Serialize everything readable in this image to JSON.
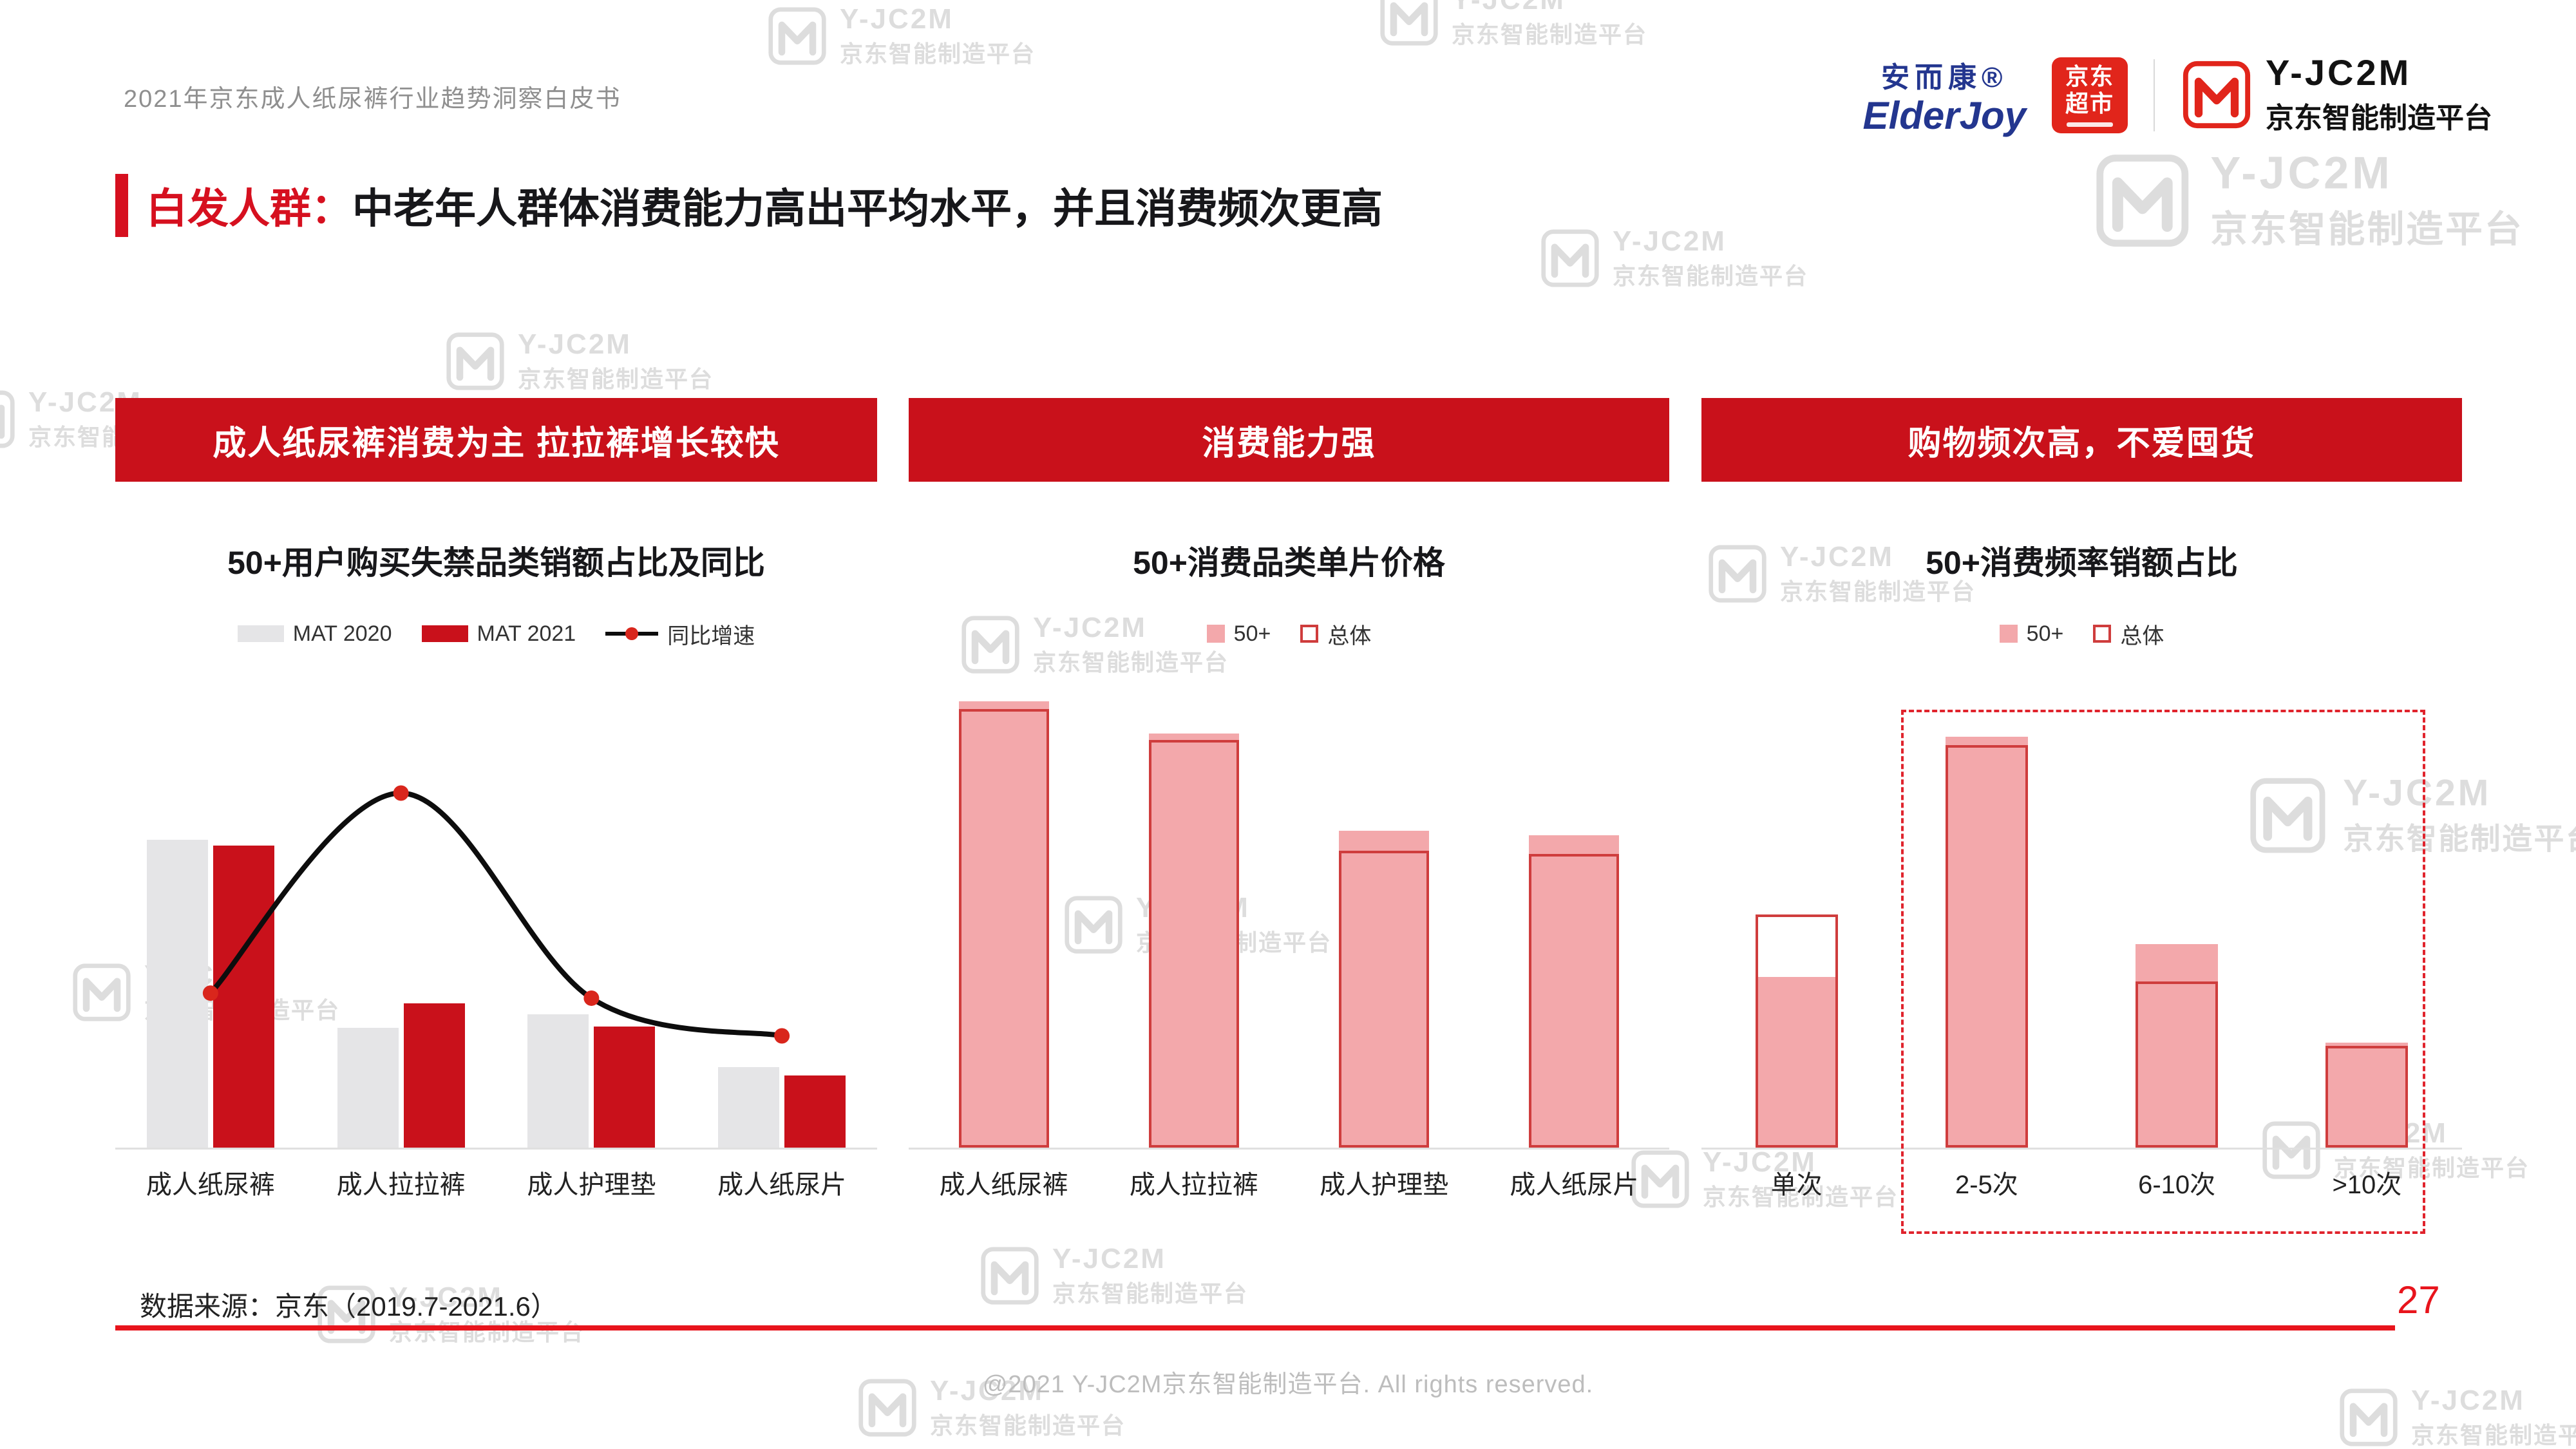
{
  "page": {
    "header_note": "2021年京东成人纸尿裤行业趋势洞察白皮书",
    "title_prefix": "白发人群：",
    "title_main": "中老年人群体消费能力高出平均水平，并且消费频次更高",
    "source": "数据来源：京东（2019.7-2021.6）",
    "page_number": "27",
    "footer": "@2021 Y-JC2M京东智能制造平台. All rights reserved.",
    "watermark": {
      "brand": "Y-JC2M",
      "subtitle": "京东智能制造平台"
    }
  },
  "logos": {
    "elderjoy_cn": "安而康®",
    "elderjoy_en": "ElderJoy",
    "jd_market_line1": "京东",
    "jd_market_line2": "超市",
    "yjc2m_name": "Y-JC2M",
    "yjc2m_subtitle": "京东智能制造平台"
  },
  "banners": [
    {
      "label": "成人纸尿裤消费为主 拉拉裤增长较快"
    },
    {
      "label": "消费能力强"
    },
    {
      "label": "购物频次高，不爱囤货"
    }
  ],
  "colors": {
    "banner_red": "#c9111b",
    "title_red": "#d6101f",
    "bright_red": "#e8141c",
    "bar_gray": "#e5e5e7",
    "bar_red": "#c9111b",
    "pink": "#f3a8ab",
    "outline_red": "#cf3d3d",
    "line_black": "#0d0d0d",
    "marker_red": "#d9261c",
    "dashed_red": "#e0242d"
  },
  "chart_data": [
    {
      "type": "bar",
      "title": "50+用户购买失禁品类销额占比及同比",
      "categories": [
        "成人纸尿裤",
        "成人拉拉裤",
        "成人护理垫",
        "成人纸尿片"
      ],
      "value_scale": "relative height 0-1 (no numeric axis labels shown in source)",
      "series": [
        {
          "name": "MAT 2020",
          "style": "filled",
          "color": "#e5e5e7",
          "values": [
            0.67,
            0.26,
            0.29,
            0.175
          ]
        },
        {
          "name": "MAT 2021",
          "style": "filled",
          "color": "#c9111b",
          "values": [
            0.657,
            0.314,
            0.264,
            0.157
          ]
        }
      ],
      "line": {
        "name": "同比增速",
        "color": "#0d0d0d",
        "marker_color": "#d9261c",
        "values": [
          0.336,
          0.771,
          0.325,
          0.243
        ]
      },
      "legend_position": "top",
      "grid": false
    },
    {
      "type": "bar",
      "title": "50+消费品类单片价格",
      "categories": [
        "成人纸尿裤",
        "成人拉拉裤",
        "成人护理垫",
        "成人纸尿片"
      ],
      "value_scale": "relative height 0-1 (no numeric axis labels shown in source)",
      "series": [
        {
          "name": "50+",
          "style": "filled",
          "color": "#f3a8ab",
          "values": [
            0.971,
            0.9,
            0.689,
            0.679
          ]
        },
        {
          "name": "总体",
          "style": "outline",
          "color": "#cf3d3d",
          "values": [
            0.954,
            0.886,
            0.646,
            0.639
          ]
        }
      ],
      "legend_position": "top",
      "grid": false
    },
    {
      "type": "bar",
      "title": "50+消费频率销额占比",
      "categories": [
        "单次",
        "2-5次",
        "6-10次",
        ">10次"
      ],
      "value_scale": "relative height 0-1 (no numeric axis labels shown in source)",
      "series": [
        {
          "name": "50+",
          "style": "filled",
          "color": "#f3a8ab",
          "values": [
            0.371,
            0.893,
            0.443,
            0.229
          ]
        },
        {
          "name": "总体",
          "style": "outline",
          "color": "#cf3d3d",
          "values": [
            0.507,
            0.875,
            0.361,
            0.221
          ]
        }
      ],
      "highlight_box": {
        "from_category": "2-5次",
        "to_category": ">10次"
      },
      "legend_position": "top",
      "grid": false
    }
  ]
}
